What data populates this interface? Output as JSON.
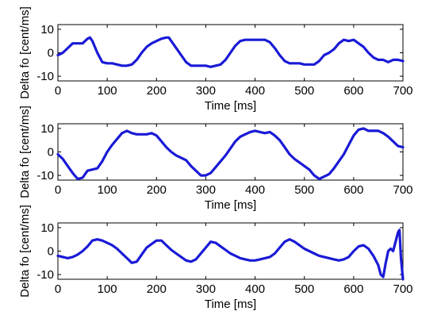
{
  "chart_data": [
    {
      "type": "line",
      "title": "",
      "xlabel": "Time [ms]",
      "ylabel": "Delta fo [cent/ms]",
      "xlim": [
        0,
        700
      ],
      "ylim": [
        -12,
        12
      ],
      "xticks": [
        "0",
        "100",
        "200",
        "300",
        "400",
        "500",
        "600",
        "700"
      ],
      "yticks": [
        "10",
        "0",
        "-10"
      ],
      "grid": false,
      "line_color": "#1a1ad6",
      "series": [
        {
          "x": [
            0,
            10,
            20,
            30,
            40,
            50,
            60,
            65,
            70,
            80,
            90,
            100,
            110,
            120,
            130,
            140,
            150,
            160,
            170,
            180,
            190,
            200,
            210,
            220,
            225,
            230,
            240,
            250,
            260,
            270,
            280,
            290,
            300,
            310,
            320,
            330,
            340,
            350,
            360,
            370,
            380,
            390,
            400,
            410,
            420,
            430,
            440,
            450,
            460,
            470,
            480,
            490,
            500,
            510,
            520,
            530,
            540,
            550,
            560,
            570,
            580,
            590,
            600,
            610,
            620,
            630,
            640,
            650,
            660,
            670,
            680,
            690,
            700
          ],
          "y": [
            -1,
            0,
            2,
            4,
            4,
            4,
            6,
            6.5,
            5,
            0,
            -4,
            -4.5,
            -4.5,
            -5,
            -5.5,
            -5.5,
            -5,
            -3,
            0,
            2.5,
            4,
            5,
            6,
            6.5,
            6.5,
            5,
            2,
            -1,
            -4,
            -5.5,
            -5.5,
            -5.5,
            -5.5,
            -6,
            -5.5,
            -5,
            -3,
            0,
            3,
            5,
            5.5,
            5.5,
            5.5,
            5.5,
            5.5,
            4.5,
            2,
            -1,
            -3.5,
            -4.5,
            -4.5,
            -4.5,
            -5,
            -5,
            -5,
            -3.5,
            -1,
            0,
            1.5,
            4,
            5.5,
            5,
            5.5,
            4,
            2.5,
            0,
            -2,
            -3,
            -3,
            -4,
            -3,
            -3,
            -3.5
          ]
        }
      ]
    },
    {
      "type": "line",
      "title": "",
      "xlabel": "Time [ms]",
      "ylabel": "Delta fo [cent/ms]",
      "xlim": [
        0,
        700
      ],
      "ylim": [
        -12,
        12
      ],
      "xticks": [
        "0",
        "100",
        "200",
        "300",
        "400",
        "500",
        "600",
        "700"
      ],
      "yticks": [
        "10",
        "0",
        "-10"
      ],
      "grid": false,
      "line_color": "#1a1ad6",
      "series": [
        {
          "x": [
            0,
            10,
            20,
            30,
            40,
            50,
            60,
            70,
            80,
            90,
            100,
            110,
            120,
            130,
            140,
            150,
            160,
            170,
            180,
            190,
            200,
            210,
            220,
            230,
            240,
            250,
            260,
            270,
            280,
            290,
            300,
            310,
            320,
            330,
            340,
            350,
            360,
            370,
            380,
            390,
            400,
            410,
            420,
            430,
            440,
            450,
            460,
            470,
            480,
            490,
            500,
            510,
            520,
            530,
            540,
            550,
            560,
            570,
            580,
            590,
            600,
            610,
            620,
            630,
            640,
            650,
            660,
            670,
            680,
            690,
            700
          ],
          "y": [
            -1,
            -3,
            -6,
            -9,
            -11.5,
            -11,
            -8,
            -7.5,
            -7,
            -4,
            0,
            3,
            5.5,
            8,
            9,
            8,
            7.5,
            7.5,
            7.5,
            8,
            7,
            4.5,
            2,
            0,
            -1.5,
            -2.5,
            -3.5,
            -6,
            -8,
            -10,
            -10,
            -9,
            -6.5,
            -4,
            -1.5,
            1.5,
            4.5,
            6.5,
            7.5,
            8.5,
            9,
            8.5,
            8,
            8.5,
            7,
            5,
            2,
            -1,
            -3,
            -4.5,
            -6,
            -7.5,
            -10,
            -11.5,
            -10.5,
            -9.5,
            -7,
            -4,
            -1,
            3,
            7,
            9.5,
            10,
            9,
            9,
            9,
            8,
            6.5,
            4.5,
            2.5,
            2
          ]
        }
      ]
    },
    {
      "type": "line",
      "title": "",
      "xlabel": "Time [ms]",
      "ylabel": "Delta fo [cent/ms]",
      "xlim": [
        0,
        700
      ],
      "ylim": [
        -12,
        12
      ],
      "xticks": [
        "0",
        "100",
        "200",
        "300",
        "400",
        "500",
        "600",
        "700"
      ],
      "yticks": [
        "10",
        "0",
        "-10"
      ],
      "grid": false,
      "line_color": "#1a1ad6",
      "series": [
        {
          "x": [
            0,
            10,
            20,
            30,
            40,
            50,
            60,
            70,
            80,
            90,
            100,
            110,
            120,
            130,
            140,
            150,
            160,
            170,
            180,
            190,
            200,
            210,
            220,
            230,
            240,
            250,
            260,
            270,
            280,
            290,
            300,
            310,
            320,
            330,
            340,
            350,
            360,
            370,
            380,
            390,
            400,
            410,
            420,
            430,
            440,
            450,
            460,
            470,
            480,
            490,
            500,
            510,
            520,
            530,
            540,
            550,
            560,
            570,
            580,
            590,
            600,
            610,
            620,
            630,
            640,
            650,
            655,
            660,
            665,
            670,
            675,
            680,
            685,
            690,
            693,
            696,
            700
          ],
          "y": [
            -2,
            -2.5,
            -3,
            -2.5,
            -1.5,
            0,
            2,
            4.5,
            5,
            4.5,
            3.5,
            2.5,
            1,
            -1,
            -3,
            -5,
            -4.5,
            -1.5,
            1.5,
            3,
            4.5,
            4.5,
            2.5,
            0.5,
            -1,
            -2.5,
            -4,
            -4.5,
            -3.5,
            -1,
            1.5,
            4,
            3.5,
            2,
            0.5,
            -1,
            -2,
            -3,
            -3.5,
            -4,
            -4,
            -3.5,
            -3,
            -2.5,
            -1,
            1.5,
            4,
            5,
            4,
            2.5,
            1,
            0,
            -1,
            -2,
            -2.5,
            -3,
            -3.5,
            -4,
            -3.5,
            -2.5,
            0,
            2,
            2.5,
            1,
            -2,
            -6,
            -10,
            -11,
            -5,
            0,
            1,
            0,
            4,
            8,
            9,
            -3,
            -12
          ]
        }
      ]
    }
  ]
}
